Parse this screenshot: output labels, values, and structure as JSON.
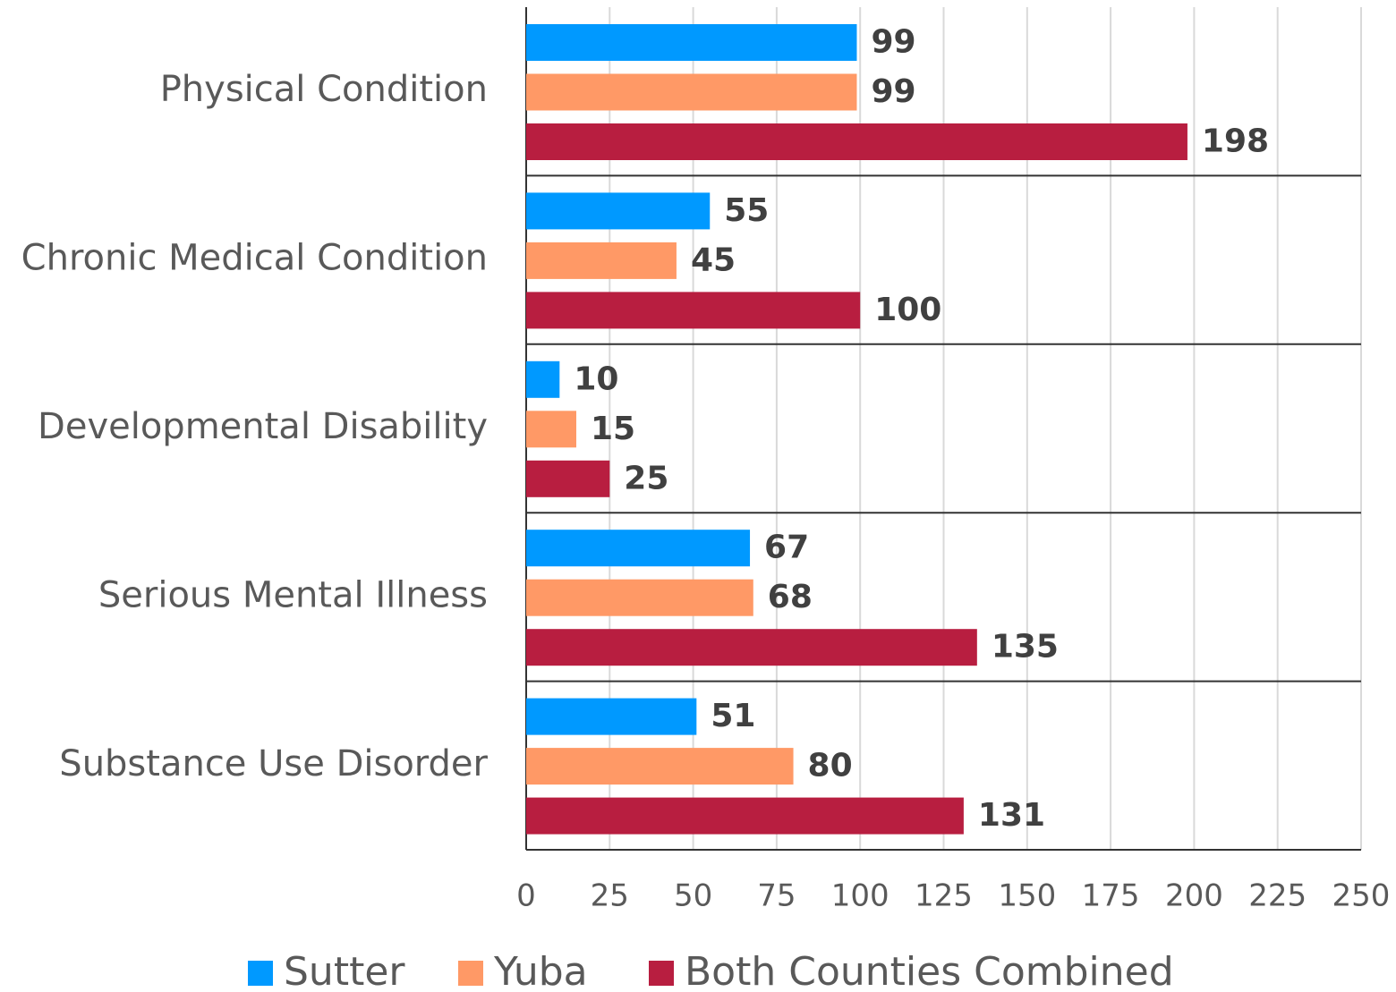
{
  "chart_data": {
    "type": "hbar",
    "categories": [
      "Physical Condition",
      "Chronic Medical Condition",
      "Developmental Disability",
      "Serious Mental Illness",
      "Substance Use Disorder"
    ],
    "series": [
      {
        "name": "Sutter",
        "color": "#0099ff",
        "values": [
          99,
          55,
          10,
          67,
          51
        ]
      },
      {
        "name": "Yuba",
        "color": "#ff9966",
        "values": [
          99,
          45,
          15,
          68,
          80
        ]
      },
      {
        "name": "Both Counties Combined",
        "color": "#b81e40",
        "values": [
          198,
          100,
          25,
          135,
          131
        ]
      }
    ],
    "xlim": [
      0,
      250
    ],
    "xticks": [
      0,
      25,
      50,
      75,
      100,
      125,
      150,
      175,
      200,
      225,
      250
    ],
    "grid": true,
    "legend": "bottom"
  }
}
